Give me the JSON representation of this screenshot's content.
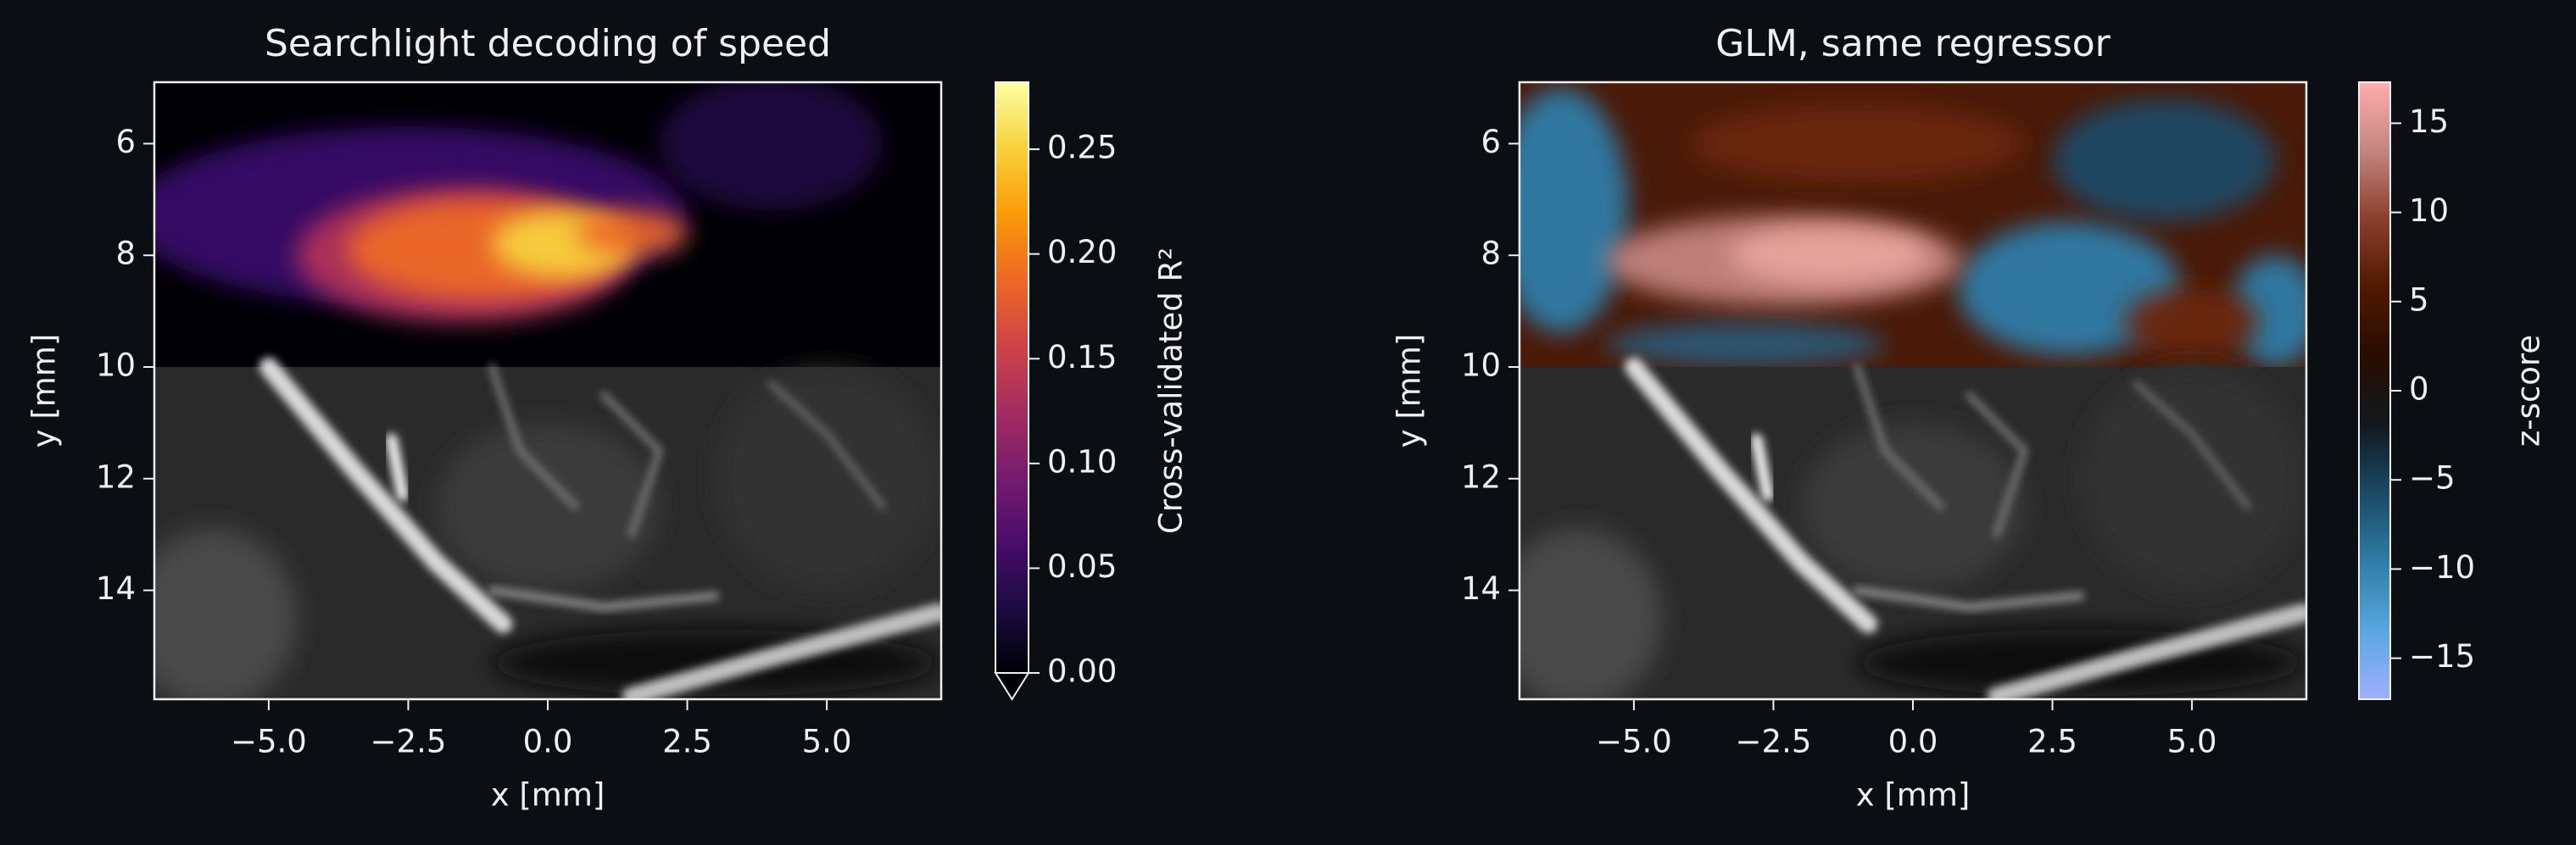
{
  "chart_data": [
    {
      "type": "image",
      "title": "Searchlight decoding of speed",
      "xlabel": "x [mm]",
      "ylabel": "y [mm]",
      "xlim": [
        -7.05,
        7.05
      ],
      "ylim": [
        15.95,
        4.9
      ],
      "xticks": [
        {
          "value": -5,
          "label": "−5.0"
        },
        {
          "value": -2.5,
          "label": "−2.5"
        },
        {
          "value": 0,
          "label": "0.0"
        },
        2.5,
        {
          "value": 5,
          "label": "5.0"
        }
      ],
      "yticks": [
        6,
        8,
        10,
        12,
        14
      ],
      "colormap": "inferno",
      "colorbar": {
        "label": "Cross-validated R²",
        "lim": [
          0,
          0.282
        ],
        "ticks": [
          {
            "value": 0,
            "label": "0.00"
          },
          0.05,
          {
            "value": 0.1,
            "label": "0.10"
          },
          0.15,
          {
            "value": 0.2,
            "label": "0.20"
          },
          0.25
        ],
        "extend": "min"
      }
    },
    {
      "type": "image",
      "title": "GLM, same regressor",
      "xlabel": "x [mm]",
      "ylabel": "y [mm]",
      "xlim": [
        -7.05,
        7.05
      ],
      "ylim": [
        15.95,
        4.9
      ],
      "xticks": [
        {
          "value": -5,
          "label": "−5.0"
        },
        {
          "value": -2.5,
          "label": "−2.5"
        },
        {
          "value": 0,
          "label": "0.0"
        },
        2.5,
        {
          "value": 5,
          "label": "5.0"
        }
      ],
      "yticks": [
        6,
        8,
        10,
        12,
        14
      ],
      "colormap": "berlin",
      "colorbar": {
        "label": "z-score",
        "lim": [
          -17.3,
          17.3
        ],
        "ticks": [
          {
            "value": -15,
            "label": "−15"
          },
          {
            "value": -10,
            "label": "−10"
          },
          {
            "value": -5,
            "label": "−5"
          },
          0,
          5,
          10,
          15
        ]
      }
    }
  ]
}
